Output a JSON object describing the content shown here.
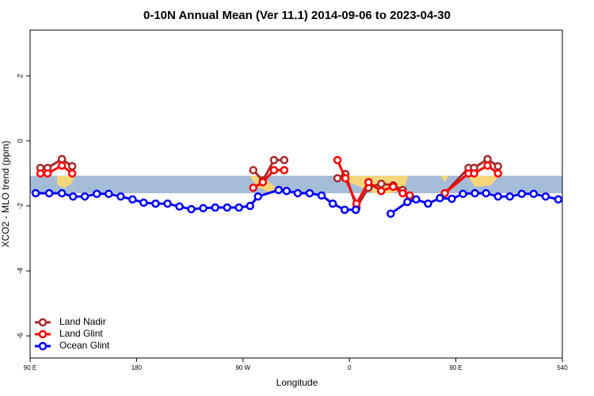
{
  "chart_data": {
    "type": "line",
    "title": "0-10N Annual Mean (Ver 11.1)   2014-09-06 to 2023-04-30",
    "x_label": "Longitude",
    "y_label": "XCO2 - MLO trend (ppm)",
    "xlim": [
      90,
      540
    ],
    "xticks": [
      {
        "value": 90,
        "label": "90 E"
      },
      180,
      {
        "value": 270,
        "label": "90 W"
      },
      {
        "value": 360,
        "label": "0"
      },
      {
        "value": 450,
        "label": "90 E"
      },
      540
    ],
    "ylim": [
      -6.68,
      3.41
    ],
    "yticks": [
      2,
      0,
      -2,
      -4,
      -6
    ],
    "band": {
      "ymin": -1.61,
      "ymax": -1.07,
      "color": "#a5bcd9"
    },
    "legend": "lower left",
    "series": [
      {
        "name": "Land Nadir",
        "color": "#a52a2a",
        "x": [
          98.7,
          104.8,
          116.9,
          125.6,
          200,
          278.7,
          286.8,
          296.2,
          304.9,
          330,
          349.9,
          356.6,
          366,
          376.1,
          386.9,
          397,
          405,
          411,
          425,
          440.6,
          460.7,
          465.4,
          476.8,
          485.6
        ],
        "values": [
          -0.83,
          -0.83,
          -0.56,
          -0.78,
          null,
          -0.9,
          -1.22,
          -0.59,
          -0.59,
          null,
          -1.15,
          -1.02,
          -2.05,
          -1.44,
          -1.32,
          -1.37,
          -1.51,
          -1.71,
          null,
          -1.61,
          -0.83,
          -0.83,
          -0.56,
          -0.78
        ]
      },
      {
        "name": "Land Glint",
        "color": "#ff0000",
        "x": [
          98.7,
          104.8,
          116.9,
          125.6,
          200,
          278.7,
          286.8,
          296.2,
          304.9,
          330,
          349.9,
          356.6,
          366,
          376.1,
          386.9,
          397,
          405,
          411,
          425,
          440.6,
          460.7,
          465.4,
          476.8,
          485.6
        ],
        "values": [
          -1.0,
          -1.0,
          -0.76,
          -1.0,
          null,
          -1.44,
          -1.27,
          -0.9,
          -0.9,
          null,
          -0.59,
          -1.15,
          -1.93,
          -1.27,
          -1.54,
          -1.41,
          -1.61,
          -1.68,
          null,
          -1.61,
          -1.0,
          -1.0,
          -0.76,
          -1.0
        ]
      },
      {
        "name": "Ocean Glint",
        "color": "#0000ff",
        "x": [
          94.7,
          106.1,
          116.9,
          126.3,
          136.3,
          146.4,
          156.5,
          166.6,
          176.6,
          186,
          196.1,
          206.2,
          216.3,
          226.3,
          236.4,
          246.5,
          256.6,
          266.6,
          276,
          282.7,
          300.2,
          306.9,
          316.3,
          326.4,
          336.5,
          345.9,
          356,
          365.4,
          380,
          394.9,
          409,
          416.4,
          426.5,
          436.5,
          446.6,
          456,
          466.1,
          475.5,
          485.6,
          495.6,
          505.7,
          515.8,
          525.9,
          536.6
        ],
        "values": [
          -1.61,
          -1.61,
          -1.61,
          -1.71,
          -1.71,
          -1.63,
          -1.63,
          -1.71,
          -1.8,
          -1.9,
          -1.93,
          -1.93,
          -2.02,
          -2.1,
          -2.07,
          -2.05,
          -2.05,
          -2.05,
          -2.0,
          -1.71,
          -1.51,
          -1.54,
          -1.61,
          -1.61,
          -1.68,
          -1.93,
          -2.12,
          -2.12,
          null,
          -2.24,
          -1.88,
          -1.8,
          -1.93,
          -1.76,
          -1.78,
          -1.63,
          -1.61,
          -1.61,
          -1.71,
          -1.71,
          -1.63,
          -1.63,
          -1.71,
          -1.8
        ]
      }
    ]
  }
}
